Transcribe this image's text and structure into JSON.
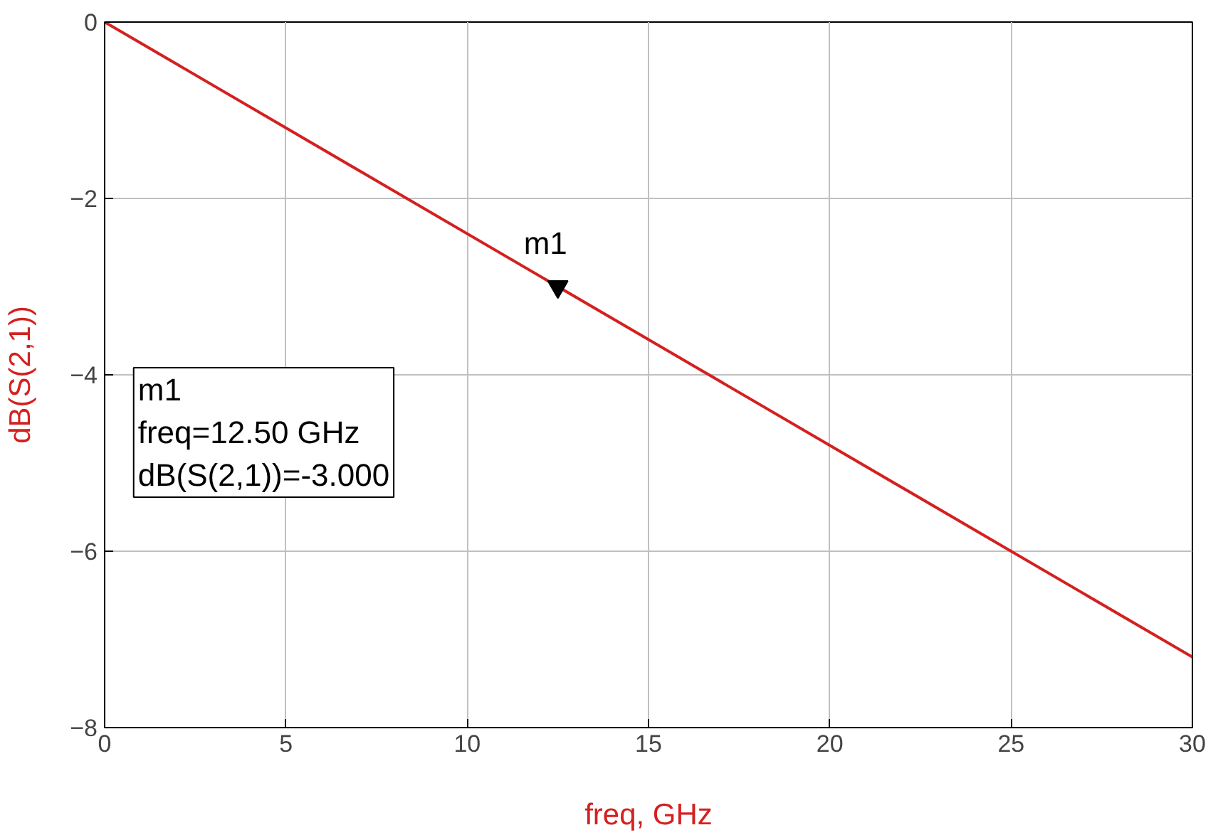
{
  "chart_data": {
    "type": "line",
    "xlabel": "freq, GHz",
    "ylabel": "dB(S(2,1))",
    "x": [
      0,
      30
    ],
    "series": [
      {
        "color": "#d42020",
        "values": [
          0,
          -7.2
        ]
      },
      {
        "type": "scatter",
        "x": [
          12.5
        ],
        "values": [
          -3.0
        ],
        "color": "#000000",
        "marker": "triangle"
      }
    ],
    "xlim": [
      0,
      30
    ],
    "xticks": [
      0,
      5,
      10,
      15,
      20,
      25,
      30
    ],
    "ylim": [
      -8,
      0
    ],
    "yticks": [
      -8,
      -6,
      -4,
      -2,
      0
    ],
    "grid": true,
    "marker": "none",
    "annotations": [
      {
        "text": "m1",
        "x": 12.5,
        "y": -3.0
      },
      "m1\nfreq=12.50 GHz\ndB(S(2,1))=-3.000"
    ]
  }
}
